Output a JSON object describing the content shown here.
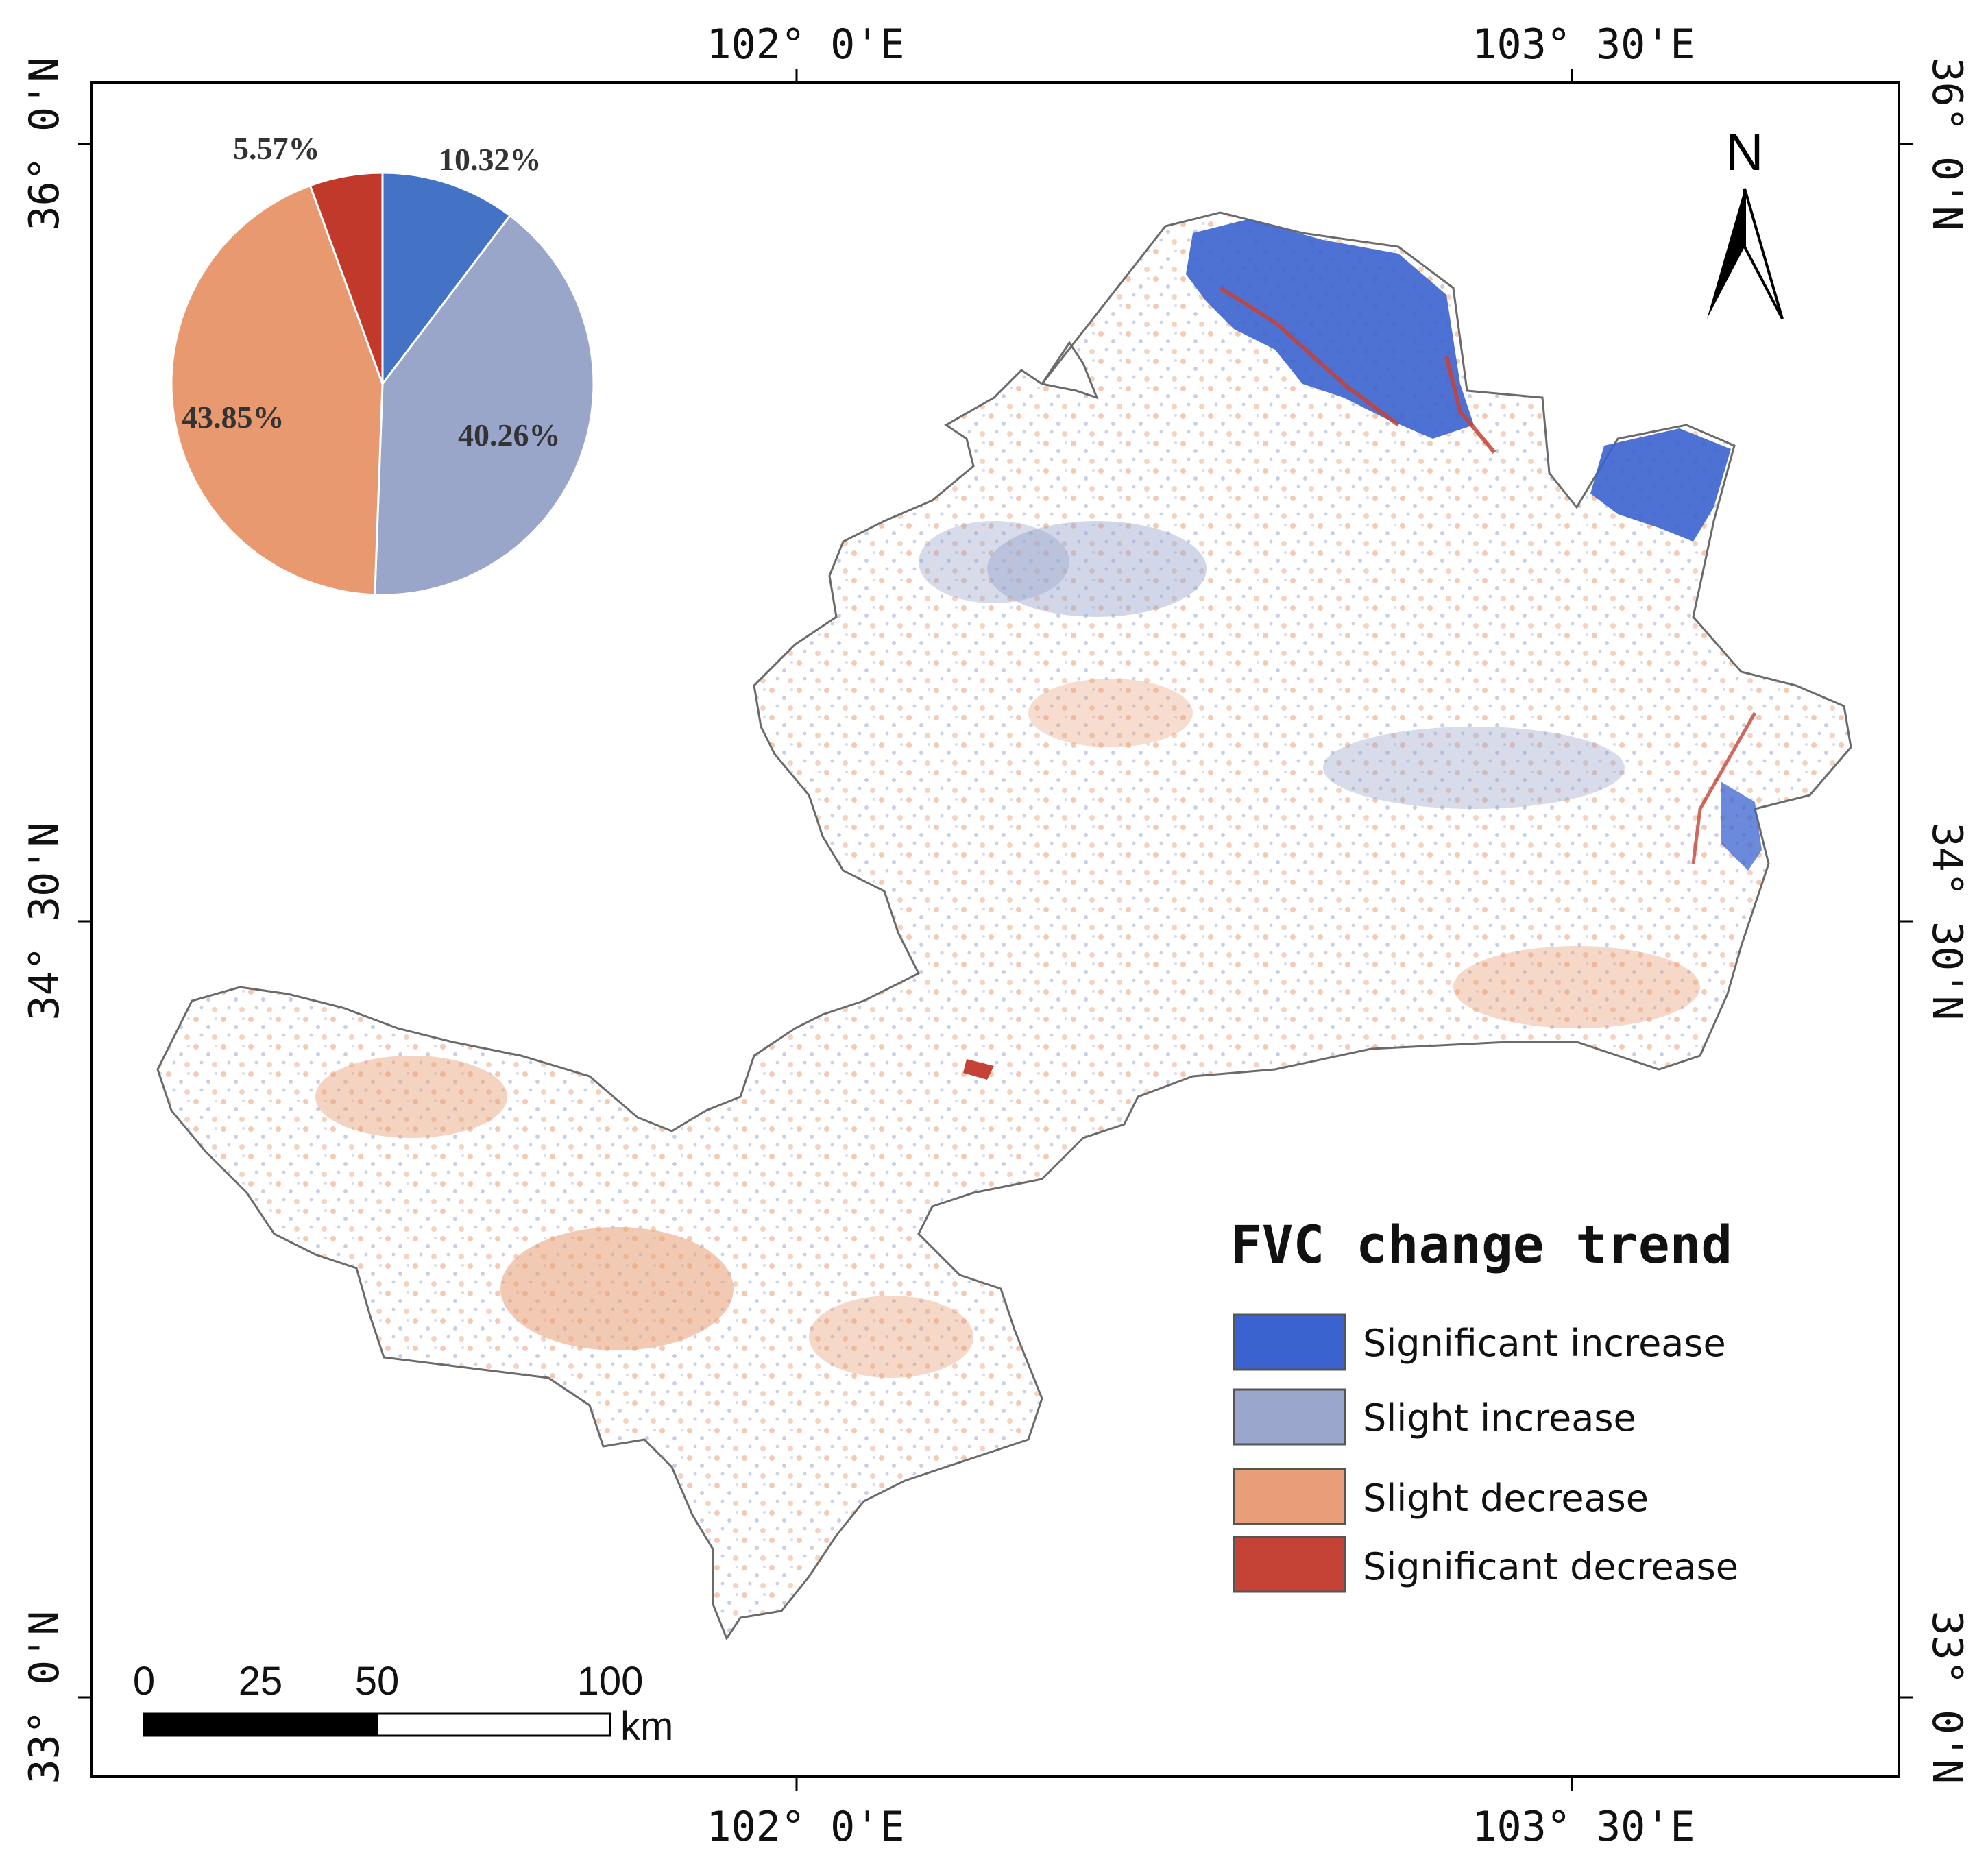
{
  "map": {
    "top_lon_labels": [
      "102° 0'E",
      "103° 30'E"
    ],
    "bottom_lon_labels": [
      "102° 0'E",
      "103° 30'E"
    ],
    "left_lat_labels": [
      "36° 0'N",
      "34° 30'N",
      "33° 0'N"
    ],
    "right_lat_labels": [
      "36° 0'N",
      "34° 30'N",
      "33° 0'N"
    ],
    "north_label": "N"
  },
  "legend": {
    "title": "FVC change trend",
    "items": [
      {
        "label": "Significant increase",
        "color": "#3b63cf"
      },
      {
        "label": "Slight increase",
        "color": "#9aa6cb"
      },
      {
        "label": "Slight decrease",
        "color": "#e89e76"
      },
      {
        "label": "Significant decrease",
        "color": "#c44236"
      }
    ]
  },
  "scale_bar": {
    "labels": [
      "0",
      "25",
      "50",
      "100"
    ],
    "unit": "km"
  },
  "chart_data": {
    "type": "pie",
    "slices": [
      {
        "label": "10.32%",
        "value": 10.32,
        "color": "#4472c4"
      },
      {
        "label": "40.26%",
        "value": 40.26,
        "color": "#9aa6c9"
      },
      {
        "label": "43.85%",
        "value": 43.85,
        "color": "#e8996f"
      },
      {
        "label": "5.57%",
        "value": 5.57,
        "color": "#c0392b"
      }
    ]
  }
}
